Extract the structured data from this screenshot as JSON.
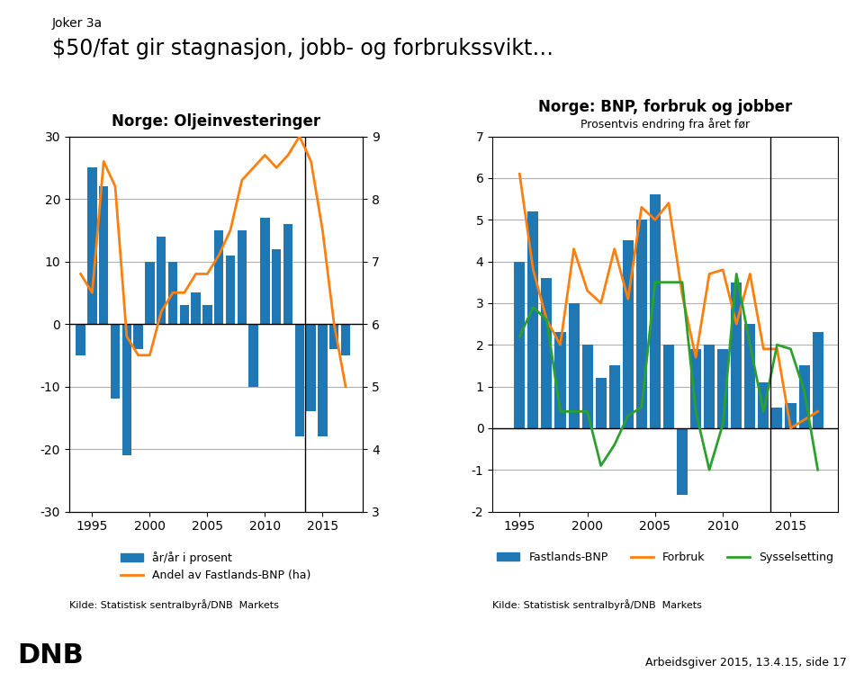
{
  "title": "$50/fat gir stagnasjon, jobb- og forbrukssvikt…",
  "annotations": [
    "Joker 3a",
    "DNB",
    "Arbeidsgiver 2015, 13.4.15, side 17"
  ],
  "chart_data": [
    {
      "type": "bar",
      "title": "Norge: Oljeinvesteringer",
      "x": [
        1994,
        1995,
        1996,
        1997,
        1998,
        1999,
        2000,
        2001,
        2002,
        2003,
        2004,
        2005,
        2006,
        2007,
        2008,
        2009,
        2010,
        2011,
        2012,
        2013,
        2014,
        2015,
        2016,
        2017
      ],
      "series": [
        {
          "name": "år/år i prosent",
          "type": "bar",
          "color": "#1f77b4",
          "values": [
            -5.0,
            25.0,
            22.0,
            -12.0,
            -21.0,
            -4.0,
            10.0,
            14.0,
            10.0,
            3.0,
            5.0,
            3.0,
            15.0,
            11.0,
            15.0,
            -10.0,
            17.0,
            12.0,
            16.0,
            -18.0,
            -14.0,
            -18.0,
            -4.0,
            -5.0
          ]
        },
        {
          "name": "Andel av Fastlands-BNP (ha)",
          "type": "line",
          "axis": "y2",
          "color": "#ff7f0e",
          "values": [
            6.8,
            6.5,
            8.6,
            8.2,
            5.8,
            5.5,
            5.5,
            6.2,
            6.5,
            6.5,
            6.8,
            6.8,
            7.1,
            7.5,
            8.3,
            8.5,
            8.7,
            8.5,
            8.7,
            9.0,
            8.6,
            7.5,
            6.0,
            5.0
          ]
        }
      ],
      "xlim": [
        1993.0,
        2018.5
      ],
      "xticks": [
        1995,
        2000,
        2005,
        2010,
        2015
      ],
      "ylim": [
        -30,
        30
      ],
      "yticks": [
        -30,
        -20,
        -10,
        0,
        10,
        20,
        30
      ],
      "y2lim": [
        3,
        9
      ],
      "y2ticks": [
        3,
        4,
        5,
        6,
        7,
        8,
        9
      ],
      "vline_x": 2013.5,
      "grid": true,
      "legend": "upper center",
      "annotations": [
        "Kilde: Statistisk sentralbyrå/DNB  Markets"
      ]
    },
    {
      "type": "bar",
      "title": "Norge: BNP, forbruk og jobber",
      "subtitle": "Prosentvis endring fra året før",
      "x": [
        1995,
        1996,
        1997,
        1998,
        1999,
        2000,
        2001,
        2002,
        2003,
        2004,
        2005,
        2006,
        2007,
        2008,
        2009,
        2010,
        2011,
        2012,
        2013,
        2014,
        2015,
        2016,
        2017
      ],
      "series": [
        {
          "name": "Fastlands-BNP",
          "type": "bar",
          "color": "#1f77b4",
          "values": [
            4.0,
            5.2,
            3.6,
            2.3,
            3.0,
            2.0,
            1.2,
            1.5,
            4.5,
            5.0,
            5.6,
            2.0,
            -1.6,
            1.9,
            2.0,
            1.9,
            3.5,
            2.5,
            1.1,
            0.5,
            0.6,
            1.5,
            2.3
          ]
        },
        {
          "name": "Forbruk",
          "type": "line",
          "color": "#ff7f0e",
          "values": [
            6.1,
            3.8,
            2.6,
            2.0,
            4.3,
            3.3,
            3.0,
            4.3,
            3.1,
            5.3,
            5.0,
            5.4,
            3.2,
            1.7,
            3.7,
            3.8,
            2.5,
            3.7,
            1.9,
            1.9,
            0.0,
            0.2,
            0.4
          ]
        },
        {
          "name": "Sysselsetting",
          "type": "line",
          "color": "#2ca02c",
          "values": [
            2.2,
            2.9,
            2.6,
            0.4,
            0.4,
            0.4,
            -0.9,
            -0.4,
            0.3,
            0.5,
            3.5,
            3.5,
            3.5,
            0.4,
            -1.0,
            0.1,
            3.7,
            2.0,
            0.4,
            2.0,
            1.9,
            0.9,
            -1.0
          ]
        }
      ],
      "xlim": [
        1993.0,
        2018.5
      ],
      "xticks": [
        1995,
        2000,
        2005,
        2010,
        2015
      ],
      "ylim": [
        -2,
        7
      ],
      "yticks": [
        -2,
        -1,
        0,
        1,
        2,
        3,
        4,
        5,
        6,
        7
      ],
      "vline_x": 2013.5,
      "grid": true,
      "legend": "upper center",
      "annotations": [
        "Kilde: Statistisk sentralbyrå/DNB  Markets"
      ]
    }
  ]
}
